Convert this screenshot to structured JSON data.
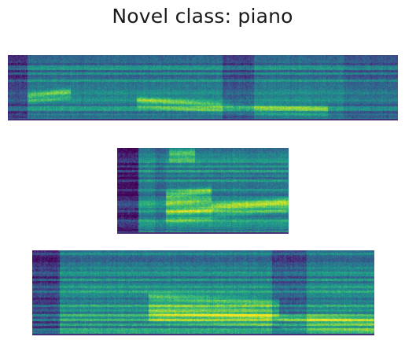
{
  "figure": {
    "title": "Novel class: piano"
  },
  "spectrograms": [
    {
      "colormap": "viridis"
    },
    {
      "colormap": "viridis"
    },
    {
      "colormap": "viridis"
    }
  ]
}
